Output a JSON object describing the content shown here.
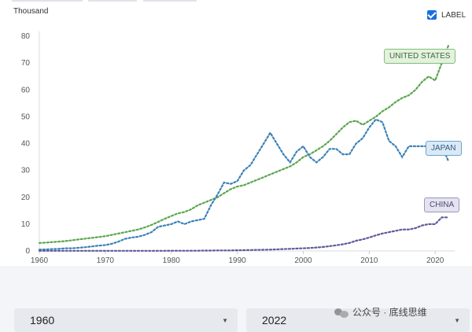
{
  "chart_data": {
    "type": "line",
    "unit_label": "Thousand",
    "x": [
      1960,
      1961,
      1962,
      1963,
      1964,
      1965,
      1966,
      1967,
      1968,
      1969,
      1970,
      1971,
      1972,
      1973,
      1974,
      1975,
      1976,
      1977,
      1978,
      1979,
      1980,
      1981,
      1982,
      1983,
      1984,
      1985,
      1986,
      1987,
      1988,
      1989,
      1990,
      1991,
      1992,
      1993,
      1994,
      1995,
      1996,
      1997,
      1998,
      1999,
      2000,
      2001,
      2002,
      2003,
      2004,
      2005,
      2006,
      2007,
      2008,
      2009,
      2010,
      2011,
      2012,
      2013,
      2014,
      2015,
      2016,
      2017,
      2018,
      2019,
      2020,
      2021,
      2022
    ],
    "xlim": [
      1960,
      2022
    ],
    "ylim": [
      0,
      80
    ],
    "x_ticks": [
      "1960",
      "1970",
      "1980",
      "1990",
      "2000",
      "2010",
      "2020"
    ],
    "y_ticks": [
      "0",
      "10",
      "20",
      "30",
      "40",
      "50",
      "60",
      "70",
      "80"
    ],
    "series": [
      {
        "name": "UNITED STATES",
        "color": "#5aa64e",
        "values": [
          3.0,
          3.1,
          3.3,
          3.5,
          3.7,
          4.0,
          4.3,
          4.6,
          4.9,
          5.2,
          5.5,
          6.0,
          6.5,
          7.0,
          7.5,
          8.0,
          8.8,
          9.7,
          10.8,
          12.0,
          13.0,
          14.0,
          14.5,
          15.5,
          17.0,
          18.0,
          19.0,
          20.0,
          21.5,
          23.0,
          24.0,
          24.5,
          25.5,
          26.5,
          27.5,
          28.5,
          29.5,
          30.5,
          31.5,
          33.0,
          35.0,
          36.0,
          37.5,
          39.0,
          41.0,
          43.5,
          46.0,
          48.0,
          48.5,
          47.0,
          48.5,
          50.0,
          52.0,
          53.5,
          55.5,
          57.0,
          58.0,
          60.0,
          63.0,
          65.0,
          63.5,
          70.0,
          76.5
        ]
      },
      {
        "name": "JAPAN",
        "color": "#3b82b8",
        "values": [
          0.5,
          0.6,
          0.7,
          0.8,
          1.0,
          1.0,
          1.2,
          1.4,
          1.7,
          2.0,
          2.2,
          2.7,
          3.5,
          4.5,
          5.0,
          5.3,
          6.0,
          7.0,
          9.0,
          9.5,
          10.0,
          11.0,
          10.0,
          11.0,
          11.5,
          12.0,
          17.0,
          21.0,
          25.5,
          25.0,
          26.0,
          30.0,
          32.0,
          36.0,
          40.0,
          44.0,
          40.0,
          36.0,
          33.0,
          37.0,
          39.0,
          35.0,
          33.0,
          35.0,
          38.0,
          38.0,
          36.0,
          36.0,
          40.0,
          42.0,
          46.0,
          49.0,
          48.0,
          41.0,
          39.0,
          35.0,
          39.0,
          39.0,
          39.0,
          39.0,
          39.0,
          39.0,
          33.5
        ]
      },
      {
        "name": "CHINA",
        "color": "#5d5a9a",
        "values": [
          0.05,
          0.05,
          0.05,
          0.05,
          0.05,
          0.05,
          0.05,
          0.05,
          0.05,
          0.05,
          0.05,
          0.05,
          0.05,
          0.05,
          0.05,
          0.05,
          0.05,
          0.05,
          0.05,
          0.05,
          0.1,
          0.1,
          0.1,
          0.1,
          0.1,
          0.15,
          0.15,
          0.2,
          0.2,
          0.2,
          0.25,
          0.3,
          0.35,
          0.4,
          0.45,
          0.5,
          0.6,
          0.7,
          0.8,
          0.9,
          1.0,
          1.1,
          1.3,
          1.5,
          1.8,
          2.1,
          2.5,
          3.0,
          3.8,
          4.3,
          5.0,
          5.8,
          6.5,
          7.0,
          7.5,
          8.0,
          8.0,
          8.5,
          9.5,
          10.0,
          10.0,
          12.5,
          12.5
        ]
      }
    ]
  },
  "legend_toggle": {
    "label": "LABEL",
    "checked": true
  },
  "range_selector": {
    "start_year": "1960",
    "end_year": "2022"
  },
  "watermark": {
    "text": "公众号 · 底线思维"
  }
}
